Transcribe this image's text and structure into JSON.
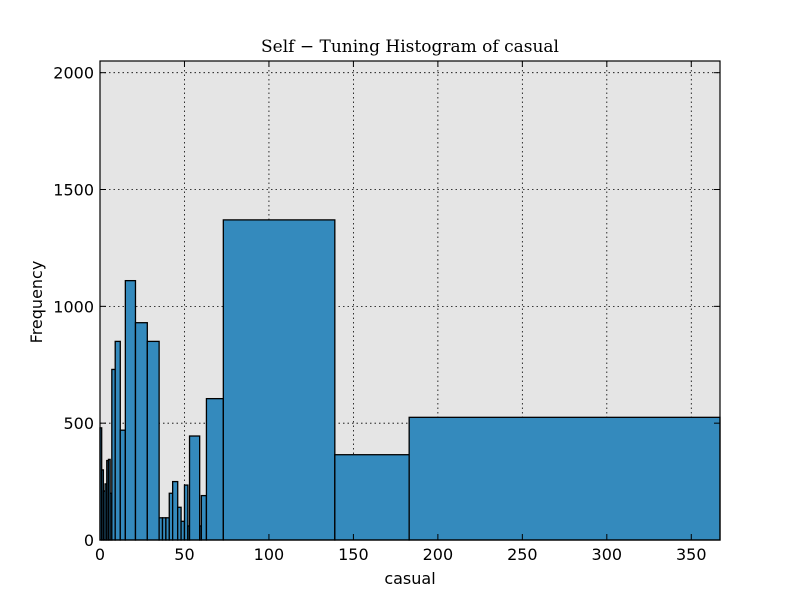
{
  "chart_data": {
    "type": "bar",
    "subtype": "histogram",
    "title": "Self − Tuning Histogram of casual",
    "xlabel": "casual",
    "ylabel": "Frequency",
    "xlim": [
      0,
      367
    ],
    "ylim": [
      0,
      2050
    ],
    "xticks": [
      0,
      50,
      100,
      150,
      200,
      250,
      300,
      350
    ],
    "yticks": [
      0,
      500,
      1000,
      1500,
      2000
    ],
    "grid": true,
    "background": "#e5e5e5",
    "bar_color": "#348abd",
    "bins": [
      {
        "x0": 0,
        "x1": 1,
        "count": 480
      },
      {
        "x0": 1,
        "x1": 2,
        "count": 300
      },
      {
        "x0": 2,
        "x1": 3,
        "count": 210
      },
      {
        "x0": 3,
        "x1": 4,
        "count": 240
      },
      {
        "x0": 4,
        "x1": 5,
        "count": 340
      },
      {
        "x0": 5,
        "x1": 6,
        "count": 345
      },
      {
        "x0": 6,
        "x1": 7,
        "count": 200
      },
      {
        "x0": 7,
        "x1": 9,
        "count": 730
      },
      {
        "x0": 9,
        "x1": 12,
        "count": 850
      },
      {
        "x0": 12,
        "x1": 15,
        "count": 470
      },
      {
        "x0": 15,
        "x1": 21,
        "count": 1110
      },
      {
        "x0": 21,
        "x1": 28,
        "count": 930
      },
      {
        "x0": 28,
        "x1": 35,
        "count": 850
      },
      {
        "x0": 35,
        "x1": 37,
        "count": 95
      },
      {
        "x0": 37,
        "x1": 39,
        "count": 95
      },
      {
        "x0": 39,
        "x1": 41,
        "count": 95
      },
      {
        "x0": 41,
        "x1": 43,
        "count": 200
      },
      {
        "x0": 43,
        "x1": 46,
        "count": 250
      },
      {
        "x0": 46,
        "x1": 48,
        "count": 140
      },
      {
        "x0": 48,
        "x1": 50,
        "count": 80
      },
      {
        "x0": 50,
        "x1": 52,
        "count": 235
      },
      {
        "x0": 52,
        "x1": 53,
        "count": 60
      },
      {
        "x0": 53,
        "x1": 59,
        "count": 445
      },
      {
        "x0": 59,
        "x1": 60,
        "count": 60
      },
      {
        "x0": 60,
        "x1": 63,
        "count": 190
      },
      {
        "x0": 63,
        "x1": 73,
        "count": 605
      },
      {
        "x0": 73,
        "x1": 139,
        "count": 1370
      },
      {
        "x0": 139,
        "x1": 183,
        "count": 365
      },
      {
        "x0": 183,
        "x1": 367,
        "count": 525
      }
    ]
  }
}
